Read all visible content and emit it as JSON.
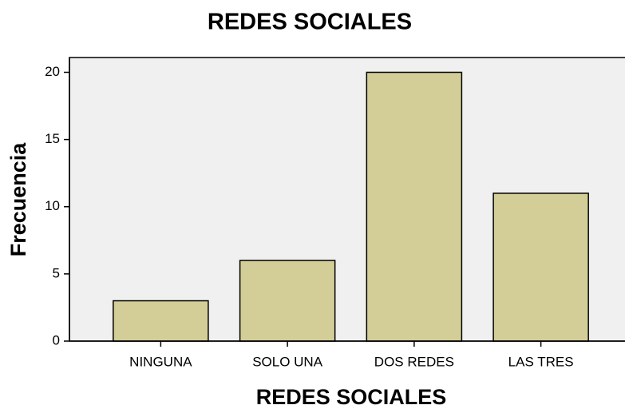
{
  "chart_data": {
    "type": "bar",
    "title": "REDES SOCIALES",
    "x_label": "REDES SOCIALES",
    "y_label": "Frecuencia",
    "categories": [
      "NINGUNA",
      "SOLO UNA",
      "DOS REDES",
      "LAS TRES"
    ],
    "values": [
      3,
      6,
      20,
      11
    ],
    "color": "#d3ce97",
    "ylim": [
      0,
      21.1
    ],
    "yticks": [
      0,
      5,
      10,
      15,
      20
    ],
    "grid": false
  }
}
